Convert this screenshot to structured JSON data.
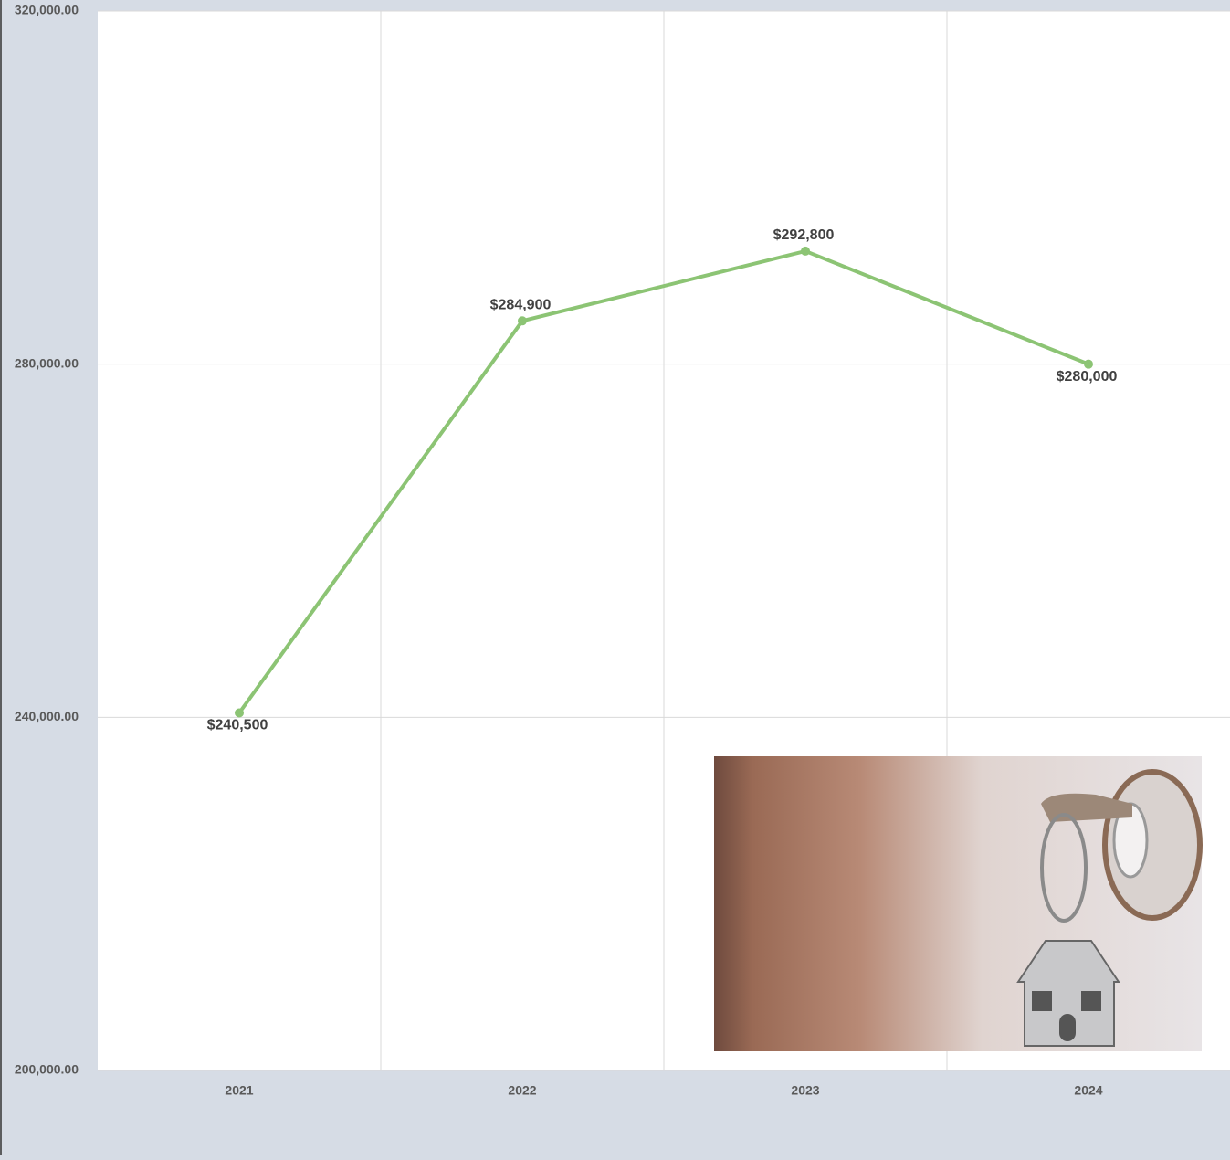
{
  "chart_data": {
    "type": "line",
    "categories": [
      "2021",
      "2022",
      "2023",
      "2024"
    ],
    "values": [
      240500,
      284900,
      292800,
      280000
    ],
    "value_labels": [
      "$240,500",
      "$284,900",
      "$292,800",
      "$280,000"
    ],
    "color": "#8cc474",
    "ylim": [
      200000,
      320000
    ],
    "yticks": [
      {
        "value": 200000,
        "label": "200,000.00"
      },
      {
        "value": 240000,
        "label": "240,000.00"
      },
      {
        "value": 280000,
        "label": "280,000.00"
      },
      {
        "value": 320000,
        "label": "320,000.00"
      }
    ],
    "grid": true
  }
}
